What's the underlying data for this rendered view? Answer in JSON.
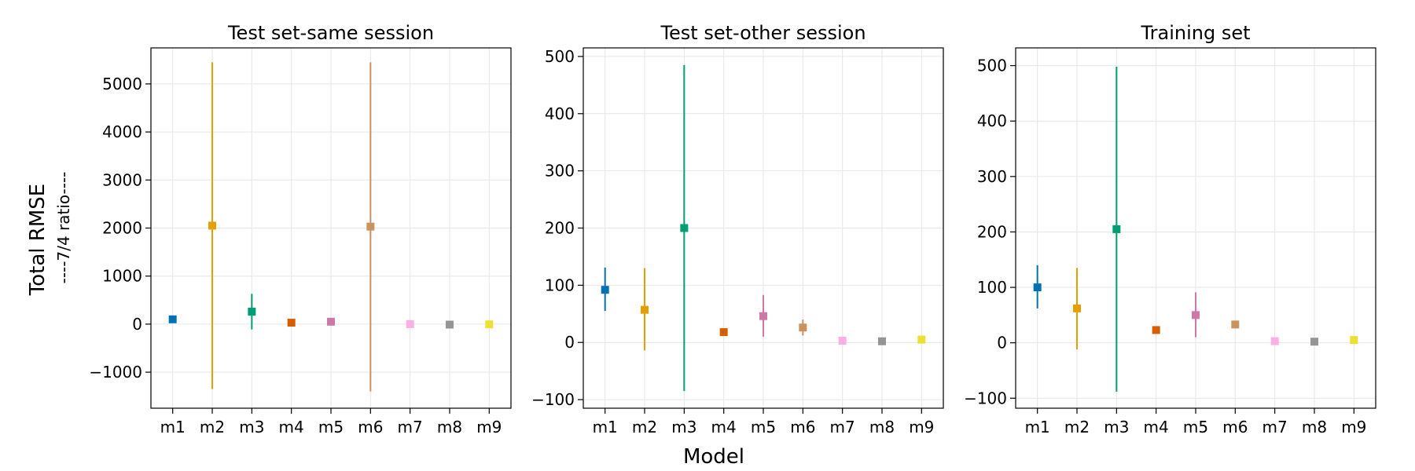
{
  "figure": {
    "ylabel": "Total RMSE",
    "ylabel_sub": "----7/4 ratio----",
    "xlabel": "Model"
  },
  "chart_data": [
    {
      "type": "scatter",
      "title": "Test set-same session",
      "xlabel": "",
      "ylabel": "Total RMSE",
      "categories": [
        "m1",
        "m2",
        "m3",
        "m4",
        "m5",
        "m6",
        "m7",
        "m8",
        "m9"
      ],
      "values": [
        100,
        2050,
        260,
        30,
        50,
        2030,
        0,
        -10,
        -5
      ],
      "error_low": [
        100,
        -1350,
        -110,
        30,
        50,
        -1400,
        0,
        -10,
        -5
      ],
      "error_high": [
        100,
        5450,
        630,
        30,
        50,
        5450,
        0,
        -10,
        -5
      ],
      "ylim": [
        -1750,
        5750
      ],
      "yticks": [
        -1000,
        0,
        1000,
        2000,
        3000,
        4000,
        5000
      ],
      "ytick_labels": [
        "−1000",
        "0",
        "1000",
        "2000",
        "3000",
        "4000",
        "5000"
      ],
      "grid": true
    },
    {
      "type": "scatter",
      "title": "Test set-other session",
      "xlabel": "",
      "ylabel": "",
      "categories": [
        "m1",
        "m2",
        "m3",
        "m4",
        "m5",
        "m6",
        "m7",
        "m8",
        "m9"
      ],
      "values": [
        92,
        57,
        200,
        18,
        46,
        26,
        3,
        2,
        5
      ],
      "error_low": [
        55,
        -14,
        -85,
        18,
        10,
        12,
        3,
        2,
        5
      ],
      "error_high": [
        131,
        130,
        485,
        18,
        83,
        40,
        3,
        2,
        5
      ],
      "ylim": [
        -115,
        515
      ],
      "yticks": [
        -100,
        0,
        100,
        200,
        300,
        400,
        500
      ],
      "ytick_labels": [
        "−100",
        "0",
        "100",
        "200",
        "300",
        "400",
        "500"
      ],
      "grid": true
    },
    {
      "type": "scatter",
      "title": "Training set",
      "xlabel": "",
      "ylabel": "",
      "categories": [
        "m1",
        "m2",
        "m3",
        "m4",
        "m5",
        "m6",
        "m7",
        "m8",
        "m9"
      ],
      "values": [
        100,
        62,
        205,
        23,
        50,
        33,
        3,
        2,
        5
      ],
      "error_low": [
        62,
        -12,
        -88,
        23,
        10,
        33,
        3,
        2,
        5
      ],
      "error_high": [
        140,
        135,
        498,
        23,
        91,
        33,
        3,
        2,
        5
      ],
      "ylim": [
        -118,
        532
      ],
      "yticks": [
        -100,
        0,
        100,
        200,
        300,
        400,
        500
      ],
      "ytick_labels": [
        "−100",
        "0",
        "100",
        "200",
        "300",
        "400",
        "500"
      ],
      "grid": true
    }
  ],
  "colors": {
    "m1": "#0072b2",
    "m2": "#e69f00",
    "m3": "#009e73",
    "m4": "#d55e00",
    "m5": "#cc79a7",
    "m6": "#ca9161",
    "m7": "#fbafe4",
    "m8": "#949494",
    "m9": "#ece133"
  }
}
